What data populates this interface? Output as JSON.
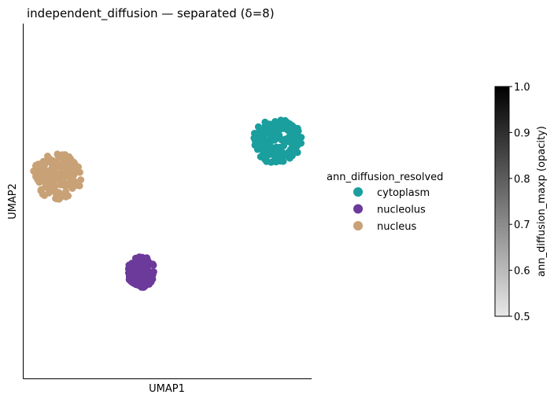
{
  "chart_data": {
    "type": "scatter",
    "title": "independent_diffusion — separated (δ=8)",
    "xlabel": "UMAP1",
    "ylabel": "UMAP2",
    "xlim": [
      0,
      10
    ],
    "ylim": [
      0,
      10
    ],
    "grid": false,
    "legend": {
      "title": "ann_diffusion_resolved",
      "placement": "right",
      "entries": [
        "cytoplasm",
        "nucleolus",
        "nucleus"
      ]
    },
    "series": [
      {
        "name": "cytoplasm",
        "color": "#1a9e9e",
        "center": [
          8.8,
          6.7
        ],
        "spread": [
          0.85,
          0.65
        ]
      },
      {
        "name": "nucleolus",
        "color": "#6b3a9a",
        "center": [
          4.1,
          3.0
        ],
        "spread": [
          0.48,
          0.44
        ]
      },
      {
        "name": "nucleus",
        "color": "#c8a176",
        "center": [
          1.2,
          5.7
        ],
        "spread": [
          0.85,
          0.65
        ]
      }
    ],
    "colorbar": {
      "label": "ann_diffusion_maxp (opacity)",
      "range": [
        0.5,
        1.0
      ],
      "ticks": [
        "1.0",
        "0.9",
        "0.8",
        "0.7",
        "0.6",
        "0.5"
      ],
      "colormap": "Greys"
    }
  }
}
